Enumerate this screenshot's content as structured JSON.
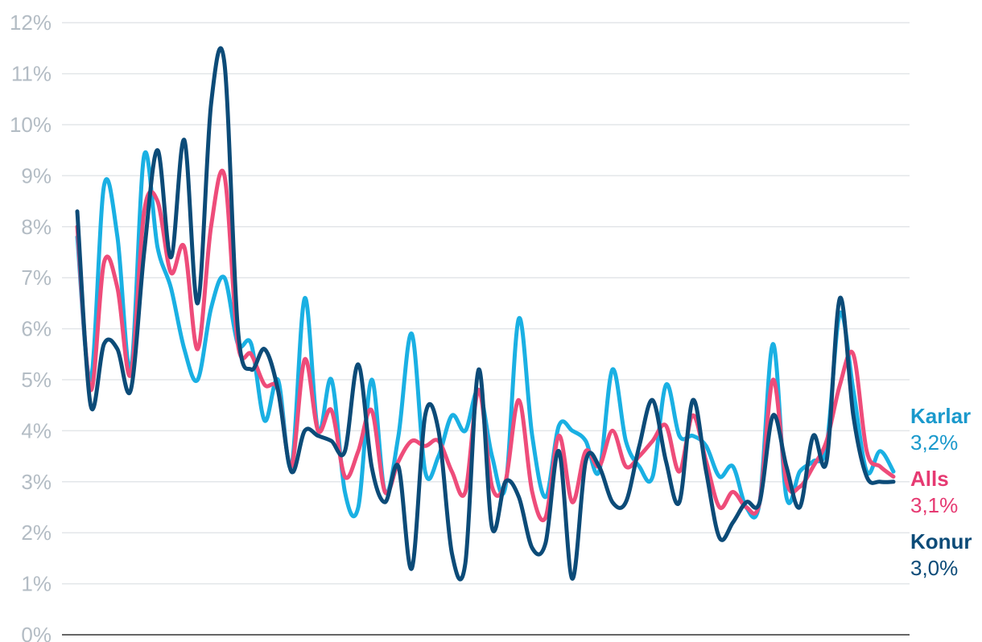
{
  "chart_data": {
    "type": "line",
    "y_ticks": [
      "0%",
      "1%",
      "2%",
      "3%",
      "4%",
      "5%",
      "6%",
      "7%",
      "8%",
      "9%",
      "10%",
      "11%",
      "12%"
    ],
    "ylim": [
      0,
      12
    ],
    "grid": true,
    "series": [
      {
        "key": "karlar",
        "name": "Karlar",
        "end_label": "3,2%",
        "color": "#1ab0e3",
        "values": [
          7.8,
          5.0,
          8.8,
          7.8,
          5.2,
          9.4,
          7.6,
          6.8,
          5.6,
          5.0,
          6.4,
          7.0,
          5.7,
          5.7,
          4.2,
          5.0,
          3.3,
          6.6,
          4.0,
          5.0,
          2.8,
          2.5,
          5.0,
          2.8,
          3.9,
          5.9,
          3.2,
          3.5,
          4.3,
          4.0,
          4.8,
          3.5,
          2.9,
          6.2,
          3.9,
          2.7,
          4.1,
          4.0,
          3.8,
          3.2,
          5.2,
          3.8,
          3.3,
          3.1,
          4.9,
          3.9,
          3.9,
          3.7,
          3.1,
          3.3,
          2.5,
          2.6,
          5.7,
          2.7,
          3.2,
          3.4,
          3.7,
          6.3,
          4.8,
          3.2,
          3.6,
          3.2
        ]
      },
      {
        "key": "alls",
        "name": "Alls",
        "end_label": "3,1%",
        "color": "#ee4c7a",
        "values": [
          8.0,
          4.8,
          7.3,
          6.8,
          5.1,
          8.3,
          8.5,
          7.1,
          7.6,
          5.6,
          8.0,
          9.0,
          5.7,
          5.5,
          4.9,
          4.8,
          3.3,
          5.4,
          4.0,
          4.4,
          3.1,
          3.6,
          4.4,
          2.8,
          3.4,
          3.8,
          3.7,
          3.8,
          3.2,
          2.8,
          4.8,
          2.9,
          3.0,
          4.6,
          2.8,
          2.3,
          3.9,
          2.6,
          3.6,
          3.3,
          4.0,
          3.3,
          3.5,
          3.8,
          4.1,
          3.2,
          4.3,
          3.4,
          2.5,
          2.8,
          2.5,
          2.6,
          5.0,
          3.0,
          2.9,
          3.3,
          3.8,
          4.9,
          5.5,
          3.6,
          3.3,
          3.1
        ]
      },
      {
        "key": "konur",
        "name": "Konur",
        "end_label": "3,0%",
        "color": "#0c4b78",
        "values": [
          8.3,
          4.5,
          5.7,
          5.6,
          4.8,
          7.5,
          9.5,
          7.4,
          9.7,
          6.5,
          10.4,
          11.2,
          6.0,
          5.2,
          5.6,
          4.8,
          3.2,
          4.0,
          3.9,
          3.8,
          3.6,
          5.3,
          3.3,
          2.6,
          3.3,
          1.3,
          4.3,
          4.0,
          1.6,
          1.4,
          5.2,
          2.1,
          3.0,
          2.7,
          1.7,
          1.8,
          3.6,
          1.1,
          3.4,
          3.3,
          2.6,
          2.6,
          3.7,
          4.6,
          3.4,
          2.6,
          4.6,
          3.2,
          1.9,
          2.2,
          2.6,
          2.6,
          4.3,
          3.3,
          2.5,
          3.9,
          3.4,
          6.6,
          4.3,
          3.1,
          3.0,
          3.0
        ]
      }
    ]
  }
}
